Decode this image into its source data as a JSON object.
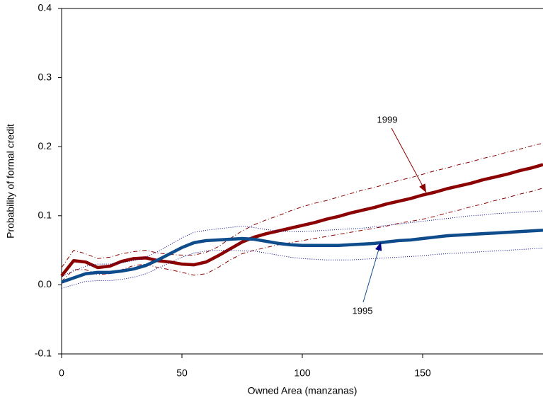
{
  "chart_data": {
    "type": "line",
    "xlabel": "Owned Area (manzanas)",
    "ylabel": "Probability of formal credit",
    "x": [
      0,
      5,
      10,
      15,
      20,
      25,
      30,
      35,
      40,
      45,
      50,
      55,
      60,
      65,
      70,
      75,
      80,
      85,
      90,
      95,
      100,
      105,
      110,
      115,
      120,
      125,
      130,
      135,
      140,
      145,
      150,
      155,
      160,
      165,
      170,
      175,
      180,
      185,
      190,
      195,
      200
    ],
    "series": [
      {
        "name": "1999",
        "color": "#8b0000",
        "style": "solid",
        "values": [
          0.013,
          0.035,
          0.033,
          0.025,
          0.027,
          0.034,
          0.038,
          0.039,
          0.035,
          0.033,
          0.03,
          0.029,
          0.033,
          0.042,
          0.052,
          0.062,
          0.069,
          0.074,
          0.078,
          0.082,
          0.086,
          0.09,
          0.095,
          0.099,
          0.104,
          0.108,
          0.112,
          0.117,
          0.121,
          0.125,
          0.13,
          0.134,
          0.139,
          0.143,
          0.147,
          0.152,
          0.156,
          0.16,
          0.165,
          0.169,
          0.174
        ]
      },
      {
        "color": "#8b0000",
        "style": "dashdot",
        "values": [
          0.025,
          0.05,
          0.045,
          0.038,
          0.04,
          0.045,
          0.048,
          0.05,
          0.046,
          0.044,
          0.043,
          0.043,
          0.047,
          0.055,
          0.067,
          0.078,
          0.087,
          0.094,
          0.1,
          0.107,
          0.113,
          0.118,
          0.122,
          0.127,
          0.132,
          0.137,
          0.141,
          0.146,
          0.151,
          0.155,
          0.16,
          0.165,
          0.169,
          0.174,
          0.178,
          0.183,
          0.187,
          0.192,
          0.196,
          0.201,
          0.205
        ]
      },
      {
        "color": "#8b0000",
        "style": "dashdot",
        "values": [
          0.005,
          0.022,
          0.022,
          0.015,
          0.016,
          0.022,
          0.028,
          0.03,
          0.025,
          0.022,
          0.018,
          0.014,
          0.016,
          0.025,
          0.036,
          0.045,
          0.05,
          0.054,
          0.058,
          0.061,
          0.064,
          0.067,
          0.07,
          0.073,
          0.076,
          0.079,
          0.082,
          0.085,
          0.089,
          0.092,
          0.095,
          0.099,
          0.104,
          0.108,
          0.113,
          0.117,
          0.122,
          0.126,
          0.131,
          0.135,
          0.14
        ]
      },
      {
        "name": "1995",
        "color": "#0e4c8c",
        "style": "solid",
        "values": [
          0.004,
          0.01,
          0.016,
          0.018,
          0.018,
          0.02,
          0.023,
          0.028,
          0.036,
          0.045,
          0.054,
          0.061,
          0.064,
          0.065,
          0.066,
          0.067,
          0.066,
          0.063,
          0.06,
          0.058,
          0.057,
          0.057,
          0.057,
          0.057,
          0.058,
          0.059,
          0.06,
          0.062,
          0.064,
          0.065,
          0.067,
          0.069,
          0.071,
          0.072,
          0.073,
          0.074,
          0.075,
          0.076,
          0.077,
          0.078,
          0.079
        ]
      },
      {
        "color": "#00008b",
        "style": "dotted",
        "values": [
          0.012,
          0.02,
          0.027,
          0.03,
          0.03,
          0.032,
          0.035,
          0.04,
          0.048,
          0.058,
          0.068,
          0.076,
          0.079,
          0.081,
          0.083,
          0.085,
          0.083,
          0.08,
          0.078,
          0.077,
          0.077,
          0.078,
          0.079,
          0.08,
          0.081,
          0.082,
          0.084,
          0.086,
          0.088,
          0.09,
          0.092,
          0.094,
          0.096,
          0.098,
          0.1,
          0.101,
          0.103,
          0.104,
          0.105,
          0.106,
          0.107
        ]
      },
      {
        "color": "#00008b",
        "style": "dotted",
        "values": [
          -0.005,
          0.0,
          0.005,
          0.006,
          0.006,
          0.008,
          0.011,
          0.016,
          0.024,
          0.032,
          0.04,
          0.046,
          0.049,
          0.05,
          0.05,
          0.049,
          0.049,
          0.046,
          0.043,
          0.04,
          0.038,
          0.037,
          0.036,
          0.036,
          0.036,
          0.037,
          0.038,
          0.039,
          0.04,
          0.041,
          0.042,
          0.044,
          0.045,
          0.046,
          0.047,
          0.048,
          0.049,
          0.05,
          0.051,
          0.052,
          0.053
        ]
      }
    ],
    "xlim": [
      0,
      200
    ],
    "xticks": [
      0,
      50,
      100,
      150
    ],
    "ylim": [
      -0.1,
      0.4
    ],
    "yticks": [
      -0.1,
      {
        "value": 0,
        "label": "0.0"
      },
      0.1,
      0.2,
      0.3,
      0.4
    ]
  }
}
